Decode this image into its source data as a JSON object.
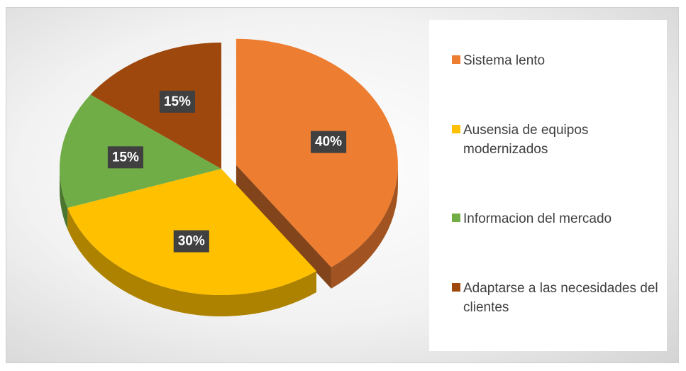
{
  "chart_data": {
    "type": "pie",
    "categories": [
      "Sistema lento",
      "Ausensia de equipos modernizados",
      "Informacion del mercado",
      "Adaptarse a las necesidades del clientes"
    ],
    "values": [
      40,
      30,
      15,
      15
    ],
    "value_labels": [
      "40%",
      "30%",
      "15%",
      "15%"
    ],
    "colors": [
      "#ED7D31",
      "#FFC000",
      "#70AD47",
      "#9E480E"
    ],
    "exploded": [
      0
    ],
    "legend": "right"
  }
}
